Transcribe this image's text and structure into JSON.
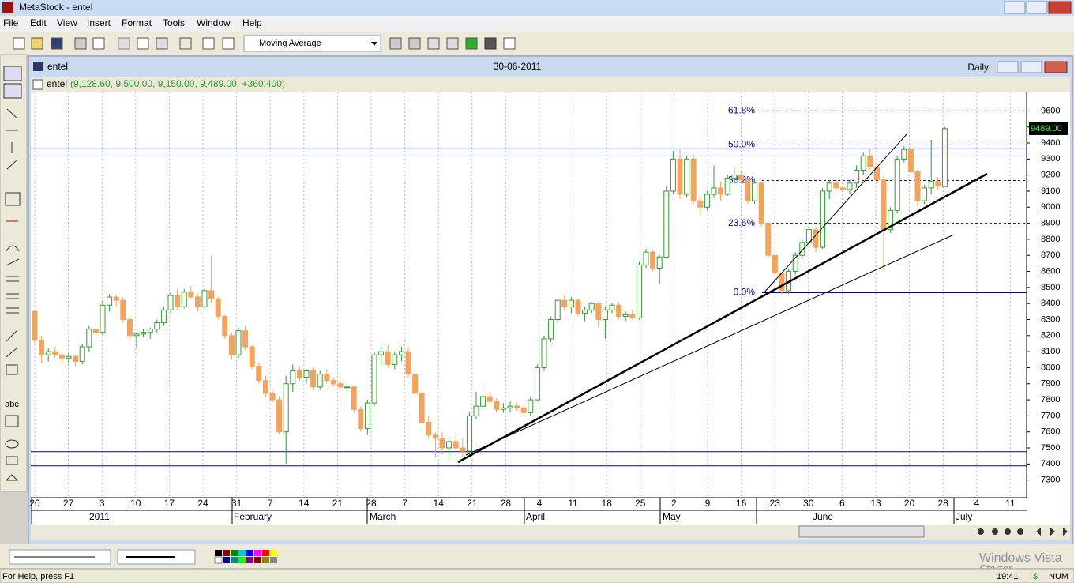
{
  "window": {
    "title": "MetaStock - entel"
  },
  "menu": [
    "File",
    "Edit",
    "View",
    "Insert",
    "Format",
    "Tools",
    "Window",
    "Help"
  ],
  "toolbar": {
    "indicator": "Moving Average"
  },
  "chart_window": {
    "title": "entel",
    "date": "30-06-2011",
    "period": "Daily"
  },
  "chart_data": {
    "type": "candlestick",
    "security": "entel",
    "header_values": "(9,128.60, 9,500.00, 9,150.00, 9,489.00, +360.400)",
    "candles": [
      [
        8350,
        8360,
        8150,
        8170
      ],
      [
        8170,
        8200,
        8030,
        8080
      ],
      [
        8080,
        8120,
        8040,
        8100
      ],
      [
        8100,
        8130,
        8060,
        8080
      ],
      [
        8080,
        8100,
        8020,
        8060
      ],
      [
        8060,
        8090,
        8030,
        8070
      ],
      [
        8070,
        8080,
        8010,
        8040
      ],
      [
        8040,
        8150,
        8020,
        8130
      ],
      [
        8130,
        8260,
        8100,
        8240
      ],
      [
        8240,
        8280,
        8200,
        8220
      ],
      [
        8220,
        8420,
        8200,
        8390
      ],
      [
        8390,
        8460,
        8350,
        8440
      ],
      [
        8440,
        8460,
        8380,
        8420
      ],
      [
        8420,
        8440,
        8280,
        8300
      ],
      [
        8300,
        8320,
        8180,
        8200
      ],
      [
        8200,
        8220,
        8120,
        8210
      ],
      [
        8210,
        8240,
        8190,
        8220
      ],
      [
        8220,
        8250,
        8180,
        8240
      ],
      [
        8240,
        8300,
        8220,
        8280
      ],
      [
        8280,
        8380,
        8260,
        8360
      ],
      [
        8360,
        8470,
        8340,
        8450
      ],
      [
        8450,
        8490,
        8360,
        8380
      ],
      [
        8380,
        8490,
        8370,
        8470
      ],
      [
        8470,
        8510,
        8430,
        8440
      ],
      [
        8440,
        8460,
        8350,
        8380
      ],
      [
        8380,
        8490,
        8370,
        8480
      ],
      [
        8480,
        8700,
        8400,
        8430
      ],
      [
        8430,
        8440,
        8300,
        8320
      ],
      [
        8320,
        8330,
        8180,
        8200
      ],
      [
        8200,
        8220,
        8050,
        8080
      ],
      [
        8080,
        8250,
        8060,
        8230
      ],
      [
        8230,
        8260,
        8110,
        8130
      ],
      [
        8130,
        8140,
        7990,
        8010
      ],
      [
        8010,
        8030,
        7900,
        7920
      ],
      [
        7920,
        7950,
        7820,
        7840
      ],
      [
        7840,
        7860,
        7780,
        7800
      ],
      [
        7800,
        7820,
        7590,
        7600
      ],
      [
        7600,
        7950,
        7400,
        7900
      ],
      [
        7900,
        8020,
        7850,
        7980
      ],
      [
        7980,
        8010,
        7920,
        7940
      ],
      [
        7940,
        7990,
        7900,
        7980
      ],
      [
        7980,
        8000,
        7860,
        7880
      ],
      [
        7880,
        7980,
        7860,
        7960
      ],
      [
        7960,
        7990,
        7900,
        7920
      ],
      [
        7920,
        7940,
        7880,
        7900
      ],
      [
        7900,
        7920,
        7860,
        7880
      ],
      [
        7880,
        7900,
        7850,
        7880
      ],
      [
        7880,
        7890,
        7720,
        7740
      ],
      [
        7740,
        7760,
        7600,
        7620
      ],
      [
        7620,
        7800,
        7580,
        7780
      ],
      [
        7780,
        8100,
        7760,
        8080
      ],
      [
        8080,
        8140,
        8020,
        8100
      ],
      [
        8100,
        8140,
        8000,
        8020
      ],
      [
        8020,
        8100,
        7990,
        8080
      ],
      [
        8080,
        8130,
        8040,
        8100
      ],
      [
        8100,
        8130,
        7940,
        7960
      ],
      [
        7960,
        7980,
        7820,
        7840
      ],
      [
        7840,
        7850,
        7650,
        7660
      ],
      [
        7660,
        7700,
        7560,
        7580
      ],
      [
        7580,
        7600,
        7440,
        7560
      ],
      [
        7560,
        7600,
        7460,
        7500
      ],
      [
        7500,
        7560,
        7420,
        7540
      ],
      [
        7540,
        7600,
        7480,
        7500
      ],
      [
        7500,
        7560,
        7440,
        7480
      ],
      [
        7480,
        7720,
        7450,
        7700
      ],
      [
        7700,
        7850,
        7680,
        7760
      ],
      [
        7760,
        7900,
        7740,
        7820
      ],
      [
        7820,
        7850,
        7770,
        7790
      ],
      [
        7790,
        7810,
        7720,
        7740
      ],
      [
        7740,
        7780,
        7720,
        7750
      ],
      [
        7750,
        7790,
        7720,
        7760
      ],
      [
        7760,
        7780,
        7730,
        7750
      ],
      [
        7750,
        7770,
        7700,
        7720
      ],
      [
        7720,
        7820,
        7700,
        7800
      ],
      [
        7800,
        8020,
        7790,
        8000
      ],
      [
        8000,
        8200,
        7980,
        8180
      ],
      [
        8180,
        8320,
        8160,
        8300
      ],
      [
        8300,
        8430,
        8280,
        8420
      ],
      [
        8420,
        8450,
        8360,
        8380
      ],
      [
        8380,
        8440,
        8340,
        8420
      ],
      [
        8420,
        8430,
        8320,
        8340
      ],
      [
        8340,
        8380,
        8290,
        8360
      ],
      [
        8360,
        8410,
        8340,
        8400
      ],
      [
        8400,
        8410,
        8250,
        8300
      ],
      [
        8300,
        8380,
        8180,
        8360
      ],
      [
        8360,
        8400,
        8340,
        8390
      ],
      [
        8390,
        8410,
        8300,
        8320
      ],
      [
        8320,
        8350,
        8290,
        8330
      ],
      [
        8330,
        8360,
        8300,
        8310
      ],
      [
        8310,
        8660,
        8300,
        8640
      ],
      [
        8640,
        8740,
        8620,
        8720
      ],
      [
        8720,
        8730,
        8600,
        8620
      ],
      [
        8620,
        8700,
        8520,
        8690
      ],
      [
        8690,
        9130,
        8680,
        9100
      ],
      [
        9100,
        9350,
        9080,
        9300
      ],
      [
        9300,
        9360,
        9050,
        9080
      ],
      [
        9080,
        9320,
        9060,
        9300
      ],
      [
        9300,
        9330,
        9020,
        9040
      ],
      [
        9040,
        9070,
        8950,
        9000
      ],
      [
        9000,
        9100,
        8980,
        9080
      ],
      [
        9080,
        9260,
        9060,
        9120
      ],
      [
        9120,
        9160,
        9040,
        9080
      ],
      [
        9080,
        9200,
        9070,
        9180
      ],
      [
        9180,
        9250,
        9140,
        9200
      ],
      [
        9200,
        9230,
        9150,
        9170
      ],
      [
        9170,
        9180,
        9020,
        9040
      ],
      [
        9040,
        9180,
        9020,
        9150
      ],
      [
        9150,
        9160,
        8880,
        8900
      ],
      [
        8900,
        8920,
        8680,
        8700
      ],
      [
        8700,
        8720,
        8560,
        8590
      ],
      [
        8590,
        8600,
        8450,
        8480
      ],
      [
        8480,
        8620,
        8460,
        8600
      ],
      [
        8600,
        8720,
        8580,
        8700
      ],
      [
        8700,
        8800,
        8680,
        8780
      ],
      [
        8780,
        8880,
        8760,
        8860
      ],
      [
        8860,
        8880,
        8720,
        8750
      ],
      [
        8750,
        9120,
        8740,
        9100
      ],
      [
        9100,
        9170,
        9050,
        9150
      ],
      [
        9150,
        9180,
        9100,
        9120
      ],
      [
        9120,
        9140,
        9080,
        9110
      ],
      [
        9110,
        9170,
        9080,
        9150
      ],
      [
        9150,
        9260,
        9120,
        9230
      ],
      [
        9230,
        9340,
        9200,
        9320
      ],
      [
        9320,
        9360,
        9230,
        9250
      ],
      [
        9250,
        9290,
        9150,
        9170
      ],
      [
        9170,
        9200,
        8600,
        8860
      ],
      [
        8860,
        9000,
        8840,
        8980
      ],
      [
        8980,
        9320,
        8960,
        9300
      ],
      [
        9300,
        9380,
        9280,
        9360
      ],
      [
        9360,
        9390,
        9200,
        9220
      ],
      [
        9220,
        9240,
        9000,
        9040
      ],
      [
        9040,
        9140,
        9020,
        9120
      ],
      [
        9120,
        9420,
        9080,
        9160
      ],
      [
        9160,
        9190,
        9110,
        9130
      ],
      [
        9128.6,
        9500,
        9150,
        9489
      ]
    ],
    "ylim": [
      7190,
      9720
    ],
    "yticks": [
      9600,
      9500,
      9400,
      9300,
      9200,
      9100,
      9000,
      8900,
      8800,
      8700,
      8600,
      8500,
      8400,
      8300,
      8200,
      8100,
      8000,
      7900,
      7800,
      7700,
      7600,
      7500,
      7400,
      7300
    ],
    "last_price": {
      "value": 9489,
      "label": "9489.00"
    },
    "fib_levels": [
      {
        "label": "61.8%",
        "value": 9600
      },
      {
        "label": "50.0%",
        "value": 9388
      },
      {
        "label": "38.2%",
        "value": 9166
      },
      {
        "label": "23.6%",
        "value": 8900
      },
      {
        "label": "0.0%",
        "value": 8467
      }
    ],
    "hlines": [
      9364,
      9319,
      7477,
      7388
    ],
    "x_labels": [
      20,
      27,
      3,
      10,
      17,
      24,
      31,
      7,
      14,
      21,
      28,
      7,
      14,
      21,
      28,
      4,
      11,
      18,
      25,
      2,
      9,
      16,
      23,
      30,
      6,
      13,
      20,
      28,
      4,
      11
    ],
    "month_labels": [
      "2011",
      "February",
      "March",
      "April",
      "May",
      "June",
      "July"
    ],
    "colors": {
      "up": "#2ca02c",
      "down": "#f4a35a",
      "line": "#0000a0"
    }
  },
  "status": {
    "help": "For Help, press F1",
    "time": "19:41",
    "num": "NUM",
    "watermark": [
      "Windows Vista",
      "Starter"
    ]
  }
}
